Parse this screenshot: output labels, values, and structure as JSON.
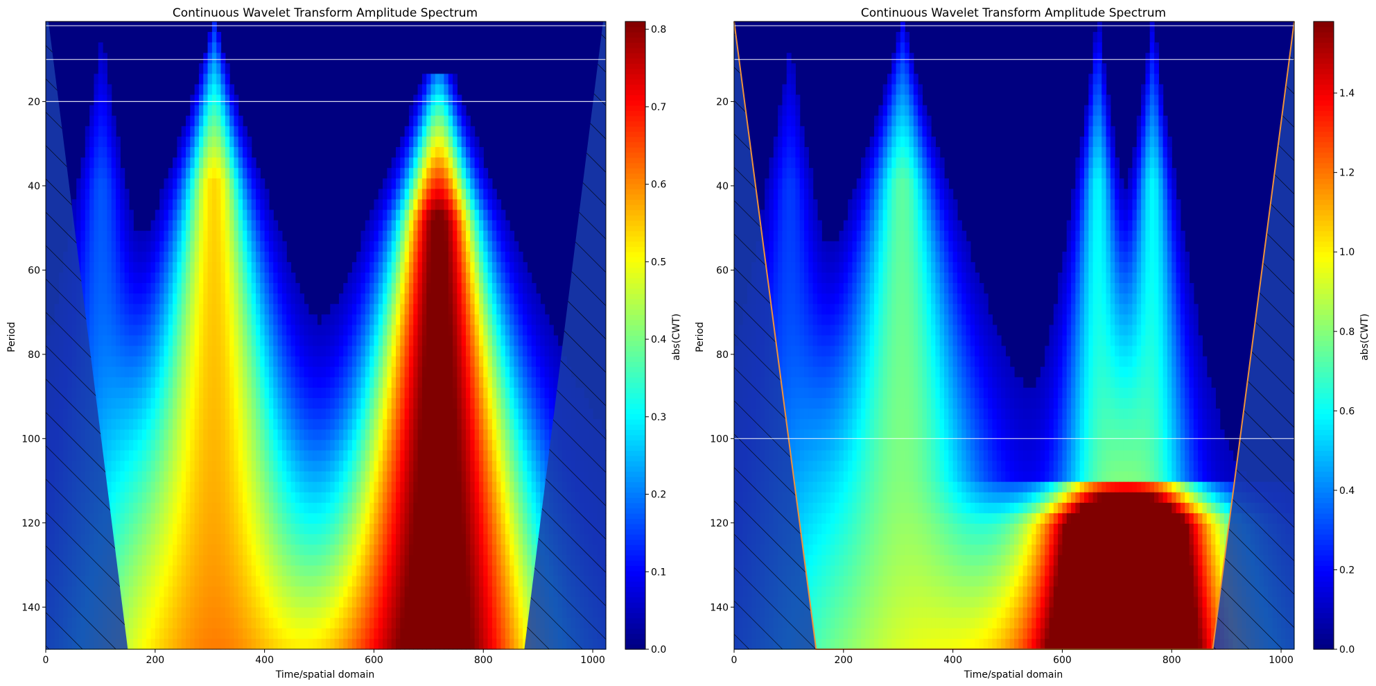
{
  "chart_data": [
    {
      "type": "heatmap",
      "title": "Continuous Wavelet Transform Amplitude Spectrum",
      "xlabel": "Time/spatial domain",
      "ylabel": "Period",
      "xlim": [
        0,
        1024
      ],
      "ylim": [
        150,
        1
      ],
      "xticks": [
        0,
        200,
        400,
        600,
        800,
        1000
      ],
      "yticks": [
        20,
        40,
        60,
        80,
        100,
        120,
        140
      ],
      "colormap": "jet",
      "colorbar": {
        "label": "abs(CWT)",
        "min": 0,
        "max": 0.81,
        "ticks": [
          0.0,
          0.1,
          0.2,
          0.3,
          0.4,
          0.5,
          0.6,
          0.7,
          0.8
        ],
        "tick_labels": [
          "0.0",
          "0.1",
          "0.2",
          "0.3",
          "0.4",
          "0.5",
          "0.6",
          "0.7",
          "0.8"
        ]
      },
      "hlines": [
        2,
        10,
        20
      ],
      "cone_of_influence": {
        "left": [
          [
            5,
            0
          ],
          [
            150,
            150
          ]
        ],
        "right": [
          [
            1019,
            0
          ],
          [
            875,
            150
          ]
        ],
        "hatched": true,
        "outline_color": null
      },
      "ridges": [
        {
          "x": 102,
          "period_top": 3,
          "peak": 0.15,
          "spread": 0.1
        },
        {
          "x": 308,
          "period_top": 2,
          "peak": 0.52,
          "spread": 0.16
        },
        {
          "x": 718,
          "period_top": 14,
          "peak": 0.81,
          "spread": 0.17
        }
      ]
    },
    {
      "type": "heatmap",
      "title": "Continuous Wavelet Transform Amplitude Spectrum",
      "xlabel": "Time/spatial domain",
      "ylabel": "Period",
      "xlim": [
        0,
        1024
      ],
      "ylim": [
        150,
        1
      ],
      "xticks": [
        0,
        200,
        400,
        600,
        800,
        1000
      ],
      "yticks": [
        20,
        40,
        60,
        80,
        100,
        120,
        140
      ],
      "colormap": "jet",
      "colorbar": {
        "label": "abs(CWT)",
        "min": 0,
        "max": 1.58,
        "ticks": [
          0.0,
          0.2,
          0.4,
          0.6,
          0.8,
          1.0,
          1.2,
          1.4
        ],
        "tick_labels": [
          "0.0",
          "0.2",
          "0.4",
          "0.6",
          "0.8",
          "1.0",
          "1.2",
          "1.4"
        ]
      },
      "hlines": [
        2,
        10,
        100
      ],
      "cone_of_influence": {
        "left": [
          [
            0,
            1
          ],
          [
            150,
            150
          ]
        ],
        "right": [
          [
            1024,
            1
          ],
          [
            875,
            150
          ]
        ],
        "hatched": true,
        "outline_color": "#f0923a"
      },
      "ridges": [
        {
          "x": 102,
          "period_top": 3,
          "peak": 0.25,
          "spread": 0.1
        },
        {
          "x": 308,
          "period_top": 2,
          "peak": 0.7,
          "spread": 0.16
        },
        {
          "x": 665,
          "period_top": 2,
          "peak": 0.55,
          "spread": 0.08
        },
        {
          "x": 765,
          "period_top": 2,
          "peak": 0.55,
          "spread": 0.08
        },
        {
          "x": 718,
          "period_top": 110,
          "peak": 1.58,
          "spread": 0.2
        }
      ]
    }
  ]
}
